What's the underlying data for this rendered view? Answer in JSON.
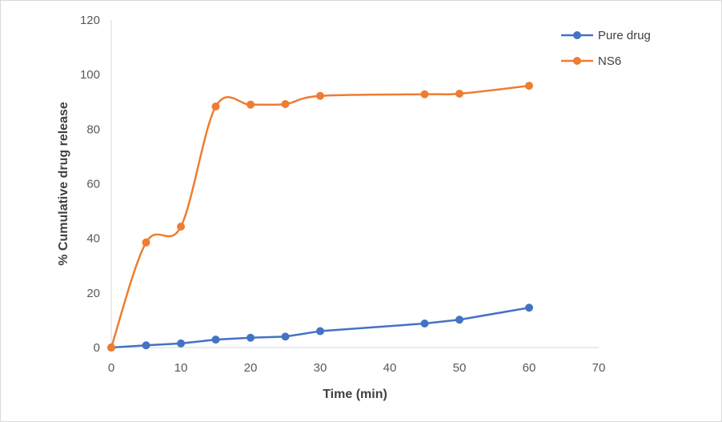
{
  "chart_data": {
    "type": "line",
    "title": "",
    "xlabel": "Time (min)",
    "ylabel": "% Cumulative drug release",
    "xlim": [
      0,
      70
    ],
    "ylim": [
      0,
      120
    ],
    "x_ticks": [
      0,
      10,
      20,
      30,
      40,
      50,
      60,
      70
    ],
    "y_ticks": [
      0,
      20,
      40,
      60,
      80,
      100,
      120
    ],
    "grid": false,
    "legend_position": "top-right",
    "series": [
      {
        "name": "Pure drug",
        "color": "#4472c4",
        "smooth": false,
        "x": [
          0,
          5,
          10,
          15,
          20,
          25,
          30,
          45,
          50,
          60
        ],
        "y": [
          0,
          0.8,
          1.5,
          2.9,
          3.6,
          4.0,
          6.0,
          8.8,
          10.2,
          14.6
        ]
      },
      {
        "name": "NS6",
        "color": "#ed7d31",
        "smooth": true,
        "x": [
          0,
          5,
          10,
          15,
          20,
          25,
          30,
          45,
          50,
          60
        ],
        "y": [
          0,
          38.5,
          44.3,
          88.3,
          89.0,
          89.2,
          92.2,
          92.8,
          93.0,
          95.9
        ]
      }
    ]
  }
}
